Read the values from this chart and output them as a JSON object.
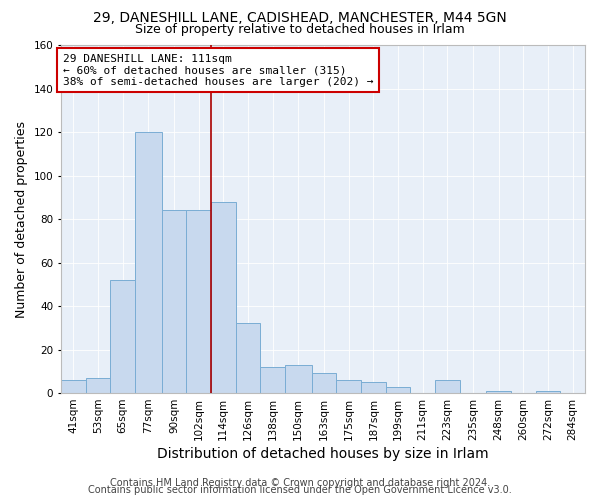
{
  "title": "29, DANESHILL LANE, CADISHEAD, MANCHESTER, M44 5GN",
  "subtitle": "Size of property relative to detached houses in Irlam",
  "xlabel": "Distribution of detached houses by size in Irlam",
  "ylabel": "Number of detached properties",
  "bar_color": "#c8d9ee",
  "bar_edge_color": "#7aadd4",
  "background_color": "#e8eff8",
  "bin_labels": [
    "41sqm",
    "53sqm",
    "65sqm",
    "77sqm",
    "90sqm",
    "102sqm",
    "114sqm",
    "126sqm",
    "138sqm",
    "150sqm",
    "163sqm",
    "175sqm",
    "187sqm",
    "199sqm",
    "211sqm",
    "223sqm",
    "235sqm",
    "248sqm",
    "260sqm",
    "272sqm",
    "284sqm"
  ],
  "bar_heights": [
    6,
    7,
    52,
    120,
    84,
    84,
    88,
    32,
    12,
    13,
    9,
    6,
    5,
    3,
    0,
    6,
    0,
    1,
    0,
    1,
    0
  ],
  "bin_edges": [
    41,
    53,
    65,
    77,
    90,
    102,
    114,
    126,
    138,
    150,
    163,
    175,
    187,
    199,
    211,
    223,
    235,
    248,
    260,
    272,
    284,
    296
  ],
  "ylim": [
    0,
    160
  ],
  "yticks": [
    0,
    20,
    40,
    60,
    80,
    100,
    120,
    140,
    160
  ],
  "vline_x": 114,
  "vline_color": "#aa0000",
  "annotation_title": "29 DANESHILL LANE: 111sqm",
  "annotation_line1": "← 60% of detached houses are smaller (315)",
  "annotation_line2": "38% of semi-detached houses are larger (202) →",
  "annotation_box_color": "#ffffff",
  "annotation_box_edge": "#cc0000",
  "footer1": "Contains HM Land Registry data © Crown copyright and database right 2024.",
  "footer2": "Contains public sector information licensed under the Open Government Licence v3.0.",
  "title_fontsize": 10,
  "subtitle_fontsize": 9,
  "xlabel_fontsize": 10,
  "ylabel_fontsize": 9,
  "tick_fontsize": 7.5,
  "footer_fontsize": 7
}
